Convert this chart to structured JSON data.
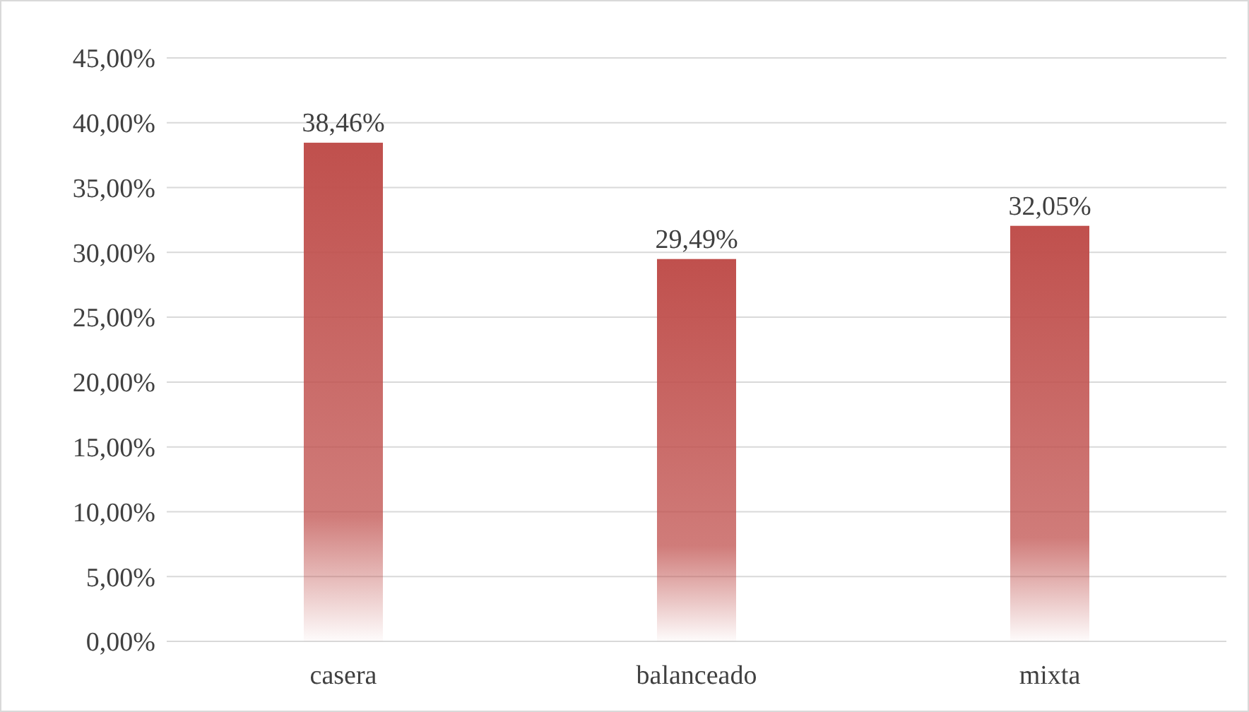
{
  "chart_data": {
    "type": "bar",
    "categories": [
      "casera",
      "balanceado",
      "mixta"
    ],
    "values": [
      38.46,
      29.49,
      32.05
    ],
    "value_labels": [
      "38,46%",
      "29,49%",
      "32,05%"
    ],
    "color": "#c0504d",
    "ylim": [
      0,
      45
    ],
    "yticks": [
      {
        "value": 0,
        "label": "0,00%"
      },
      {
        "value": 5,
        "label": "5,00%"
      },
      {
        "value": 10,
        "label": "10,00%"
      },
      {
        "value": 15,
        "label": "15,00%"
      },
      {
        "value": 20,
        "label": "20,00%"
      },
      {
        "value": 25,
        "label": "25,00%"
      },
      {
        "value": 30,
        "label": "30,00%"
      },
      {
        "value": 35,
        "label": "35,00%"
      },
      {
        "value": 40,
        "label": "40,00%"
      },
      {
        "value": 45,
        "label": "45,00%"
      }
    ],
    "grid": "y"
  }
}
